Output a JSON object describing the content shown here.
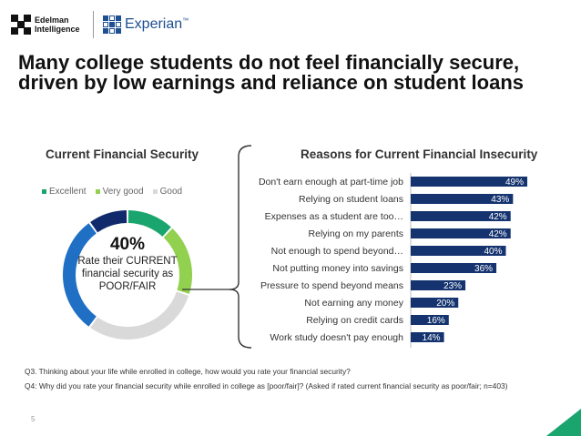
{
  "logos": {
    "edelman": "Edelman Intelligence",
    "experian": "Experian",
    "experian_tm": "™"
  },
  "title": "Many college students do not feel financially secure, driven by low earnings and reliance on student loans",
  "chart_data": [
    {
      "type": "pie",
      "title": "Current Financial Security",
      "legend": [
        "Excellent",
        "Very good",
        "Good"
      ],
      "categories": [
        "Excellent",
        "Very good",
        "Good",
        "Fair",
        "Poor"
      ],
      "values": [
        12,
        18,
        30,
        30,
        10
      ],
      "colors": [
        "#1aa56e",
        "#92d050",
        "#d9d9d9",
        "#1f6fc4",
        "#102a6b"
      ],
      "center_value": "40%",
      "center_caption": "Rate their CURRENT financial security as POOR/FAIR"
    },
    {
      "type": "bar",
      "orientation": "horizontal",
      "title": "Reasons for Current Financial Insecurity",
      "categories": [
        "Don't earn enough at part-time job",
        "Relying on student loans",
        "Expenses as a student are too…",
        "Relying on my parents",
        "Not enough to spend beyond…",
        "Not putting money into savings",
        "Pressure to spend beyond means",
        "Not earning any money",
        "Relying on credit cards",
        "Work study doesn't pay enough"
      ],
      "values": [
        49,
        43,
        42,
        42,
        40,
        36,
        23,
        20,
        16,
        14
      ],
      "value_suffix": "%",
      "color": "#14336f",
      "xlim": [
        0,
        50
      ]
    }
  ],
  "footnotes": [
    "Q3. Thinking about your life while enrolled in college, how would you rate your financial security?",
    "Q4: Why did you rate your financial security while enrolled in college as [poor/fair]? (Asked if rated current financial security as poor/fair; n=403)"
  ],
  "page_number": "5",
  "colors": {
    "navy": "#14336f",
    "brand_blue": "#1d4f91",
    "corner_green": "#1aa56e"
  }
}
